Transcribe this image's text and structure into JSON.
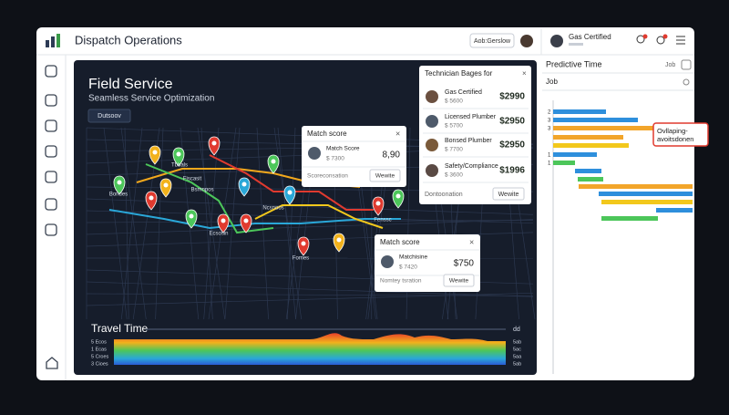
{
  "header": {
    "title": "Dispatch Operations",
    "button": "Aob:Gerslow",
    "user": "Gas Certified"
  },
  "map": {
    "title": "Field Service",
    "subtitle": "Seamless Service Optimization",
    "button": "Dutsoov",
    "labels": [
      "Tbbals",
      "Fiscasit",
      "Bondes",
      "Bsmnpos",
      "Ecsosin",
      "Ncsnoos",
      "Fenssc",
      "Fomes"
    ]
  },
  "travel_time": {
    "title": "Travel Time",
    "unit": "dd",
    "left_labels": [
      "5 Ecos",
      "1 Ecas",
      "5 Croes",
      "3 Cioes"
    ],
    "right_labels": [
      "5ab",
      "5ac",
      "5aa",
      "5ab"
    ]
  },
  "technician_panel": {
    "title": "Technician Bages for",
    "rows": [
      {
        "name": "Gas Certified",
        "sub": "$ 5600",
        "price": "$2990"
      },
      {
        "name": "Licensed Plumber",
        "sub": "$ 5700",
        "price": "$2950"
      },
      {
        "name": "Bonsed Plumber",
        "sub": "$ 7700",
        "price": "$2950"
      },
      {
        "name": "Safety/Compliance",
        "sub": "$ 3600",
        "price": "$1996"
      }
    ],
    "footer": "Dontoonation",
    "button": "Wewite"
  },
  "match_cards": [
    {
      "title": "Match score",
      "name": "Match Score",
      "sub": "$ 7300",
      "score": "8,90",
      "footer": "Scoreconsation",
      "button": "Wewite"
    },
    {
      "title": "Match score",
      "name": "Matchisine",
      "sub": "$ 7420",
      "score": "$750",
      "footer": "Nomtey tsration",
      "button": "Wewite"
    }
  ],
  "predictive": {
    "title": "Predictive Time",
    "tab": "Job",
    "section": "Job",
    "row_labels": [
      "2",
      "3",
      "3",
      "1",
      "1"
    ],
    "callout": "Ovllaping- avoitsdonen"
  }
}
